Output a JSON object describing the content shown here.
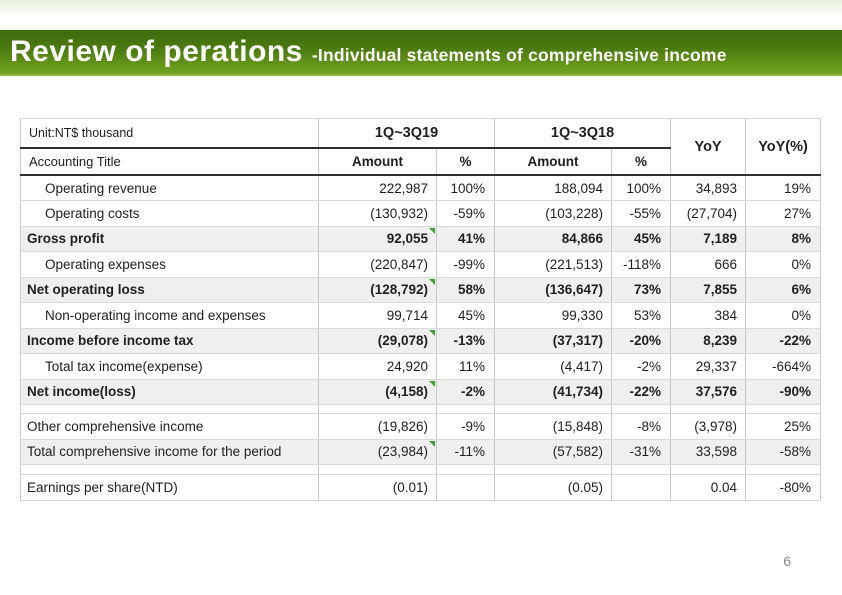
{
  "header": {
    "title": "Review of perations",
    "subtitle": "-Individual statements of comprehensive income"
  },
  "table": {
    "unit_label": "Unit:NT$ thousand",
    "header_row1": {
      "period1": "1Q~3Q19",
      "period2": "1Q~3Q18",
      "yoy": "YoY",
      "yoy_pct": "YoY(%)"
    },
    "header_row2": {
      "accounting_title": "Accounting Title",
      "amount": "Amount",
      "pct": "%"
    },
    "rows": [
      {
        "label": "Operating revenue",
        "indent": true,
        "bold": false,
        "shaded": false,
        "marker": false,
        "amount1": "222,987",
        "pct1": "100%",
        "amount2": "188,094",
        "pct2": "100%",
        "yoy": "34,893",
        "yoy_pct": "19%"
      },
      {
        "label": "Operating costs",
        "indent": true,
        "bold": false,
        "shaded": false,
        "marker": false,
        "amount1": "(130,932)",
        "pct1": "-59%",
        "amount2": "(103,228)",
        "pct2": "-55%",
        "yoy": "(27,704)",
        "yoy_pct": "27%"
      },
      {
        "label": "Gross profit",
        "indent": false,
        "bold": true,
        "shaded": true,
        "marker": true,
        "amount1": "92,055",
        "pct1": "41%",
        "amount2": "84,866",
        "pct2": "45%",
        "yoy": "7,189",
        "yoy_pct": "8%"
      },
      {
        "label": "Operating expenses",
        "indent": true,
        "bold": false,
        "shaded": false,
        "marker": false,
        "amount1": "(220,847)",
        "pct1": "-99%",
        "amount2": "(221,513)",
        "pct2": "-118%",
        "yoy": "666",
        "yoy_pct": "0%"
      },
      {
        "label": "Net operating loss",
        "indent": false,
        "bold": true,
        "shaded": true,
        "marker": true,
        "amount1": "(128,792)",
        "pct1": "58%",
        "amount2": "(136,647)",
        "pct2": "73%",
        "yoy": "7,855",
        "yoy_pct": "6%"
      },
      {
        "label": "Non-operating income and expenses",
        "indent": true,
        "bold": false,
        "shaded": false,
        "marker": false,
        "amount1": "99,714",
        "pct1": "45%",
        "amount2": "99,330",
        "pct2": "53%",
        "yoy": "384",
        "yoy_pct": "0%"
      },
      {
        "label": "Income before income tax",
        "indent": false,
        "bold": true,
        "shaded": true,
        "marker": true,
        "amount1": "(29,078)",
        "pct1": "-13%",
        "amount2": "(37,317)",
        "pct2": "-20%",
        "yoy": "8,239",
        "yoy_pct": "-22%"
      },
      {
        "label": "Total tax income(expense)",
        "indent": true,
        "bold": false,
        "shaded": false,
        "marker": false,
        "amount1": "24,920",
        "pct1": "11%",
        "amount2": "(4,417)",
        "pct2": "-2%",
        "yoy": "29,337",
        "yoy_pct": "-664%"
      },
      {
        "label": "Net income(loss)",
        "indent": false,
        "bold": true,
        "shaded": true,
        "marker": true,
        "amount1": "(4,158)",
        "pct1": "-2%",
        "amount2": "(41,734)",
        "pct2": "-22%",
        "yoy": "37,576",
        "yoy_pct": "-90%"
      },
      {
        "spacer": true,
        "h": 9
      },
      {
        "label": "Other comprehensive income",
        "indent": false,
        "bold": false,
        "shaded": false,
        "marker": false,
        "amount1": "(19,826)",
        "pct1": "-9%",
        "amount2": "(15,848)",
        "pct2": "-8%",
        "yoy": "(3,978)",
        "yoy_pct": "25%"
      },
      {
        "label": "Total comprehensive income for the period",
        "indent": false,
        "bold": false,
        "shaded": true,
        "marker": true,
        "amount1": "(23,984)",
        "pct1": "-11%",
        "amount2": "(57,582)",
        "pct2": "-31%",
        "yoy": "33,598",
        "yoy_pct": "-58%"
      },
      {
        "spacer": true,
        "h": 10
      },
      {
        "label": "Earnings per share(NTD)",
        "indent": false,
        "bold": false,
        "shaded": false,
        "marker": false,
        "amount1": "(0.01)",
        "pct1": "",
        "amount2": "(0.05)",
        "pct2": "",
        "yoy": "0.04",
        "yoy_pct": "-80%"
      }
    ]
  },
  "footer": {
    "page_number": "6"
  },
  "colors": {
    "bar_top": "#3e690d",
    "bar_bottom": "#74a41f",
    "row_shade": "#efefef",
    "grid_line": "#c9c9c9",
    "dark_line": "#2f2f2f",
    "marker_green": "#3f9b35",
    "text": "#1f1f1f",
    "page_number_gray": "#8c8c8c",
    "top_tint": "#e8efdb"
  }
}
